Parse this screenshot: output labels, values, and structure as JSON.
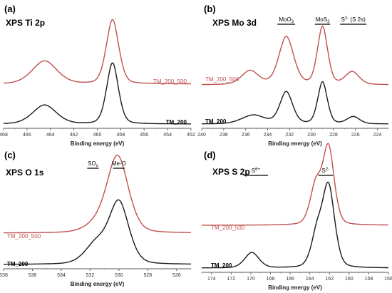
{
  "colors": {
    "black": "#1a1a1a",
    "red": "#c0504d"
  },
  "panels": [
    {
      "letter": "(a)",
      "name": "XPS Ti 2p",
      "xlabel": "Binding energy (eV)",
      "ticks": [
        "468",
        "466",
        "464",
        "462",
        "460",
        "458",
        "456",
        "454",
        "452"
      ],
      "peak_labels": [],
      "series_labels": [
        "TM_200_500",
        "TM_200"
      ]
    },
    {
      "letter": "(b)",
      "name": "XPS Mo 3d",
      "xlabel": "Binding energy (eV)",
      "ticks": [
        "240",
        "238",
        "236",
        "234",
        "232",
        "230",
        "228",
        "226",
        "224"
      ],
      "peak_labels": [
        {
          "main": "MoO",
          "sub": "3",
          "after": ""
        },
        {
          "main": "MoS",
          "sub": "2",
          "after": ""
        },
        {
          "main": "S",
          "sup": "2-",
          "after": " (S 2s)"
        }
      ],
      "series_labels": [
        "TM_200_500",
        "TM_200"
      ]
    },
    {
      "letter": "(c)",
      "name": "XPS O 1s",
      "xlabel": "Binding energy (eV)",
      "ticks": [
        "538",
        "536",
        "534",
        "532",
        "530",
        "528",
        "526"
      ],
      "peak_labels": [
        {
          "main": "SO",
          "sub": "x",
          "after": ""
        },
        {
          "main": "Me-O",
          "after": ""
        }
      ],
      "series_labels": [
        "TM_200_500",
        "TM_200"
      ]
    },
    {
      "letter": "(d)",
      "name": "XPS S 2p",
      "xlabel": "Binding energy (eV)",
      "ticks": [
        "174",
        "172",
        "170",
        "168",
        "166",
        "164",
        "162",
        "160",
        "158",
        "156"
      ],
      "peak_labels": [
        {
          "main": "S",
          "sup": "6+",
          "after": ""
        },
        {
          "main": "S",
          "sup": "2-",
          "after": ""
        }
      ],
      "series_labels": [
        "TM_200_500",
        "TM_200"
      ]
    }
  ],
  "chart_data": [
    {
      "type": "line",
      "title": "XPS Ti 2p",
      "xlabel": "Binding energy (eV)",
      "ylabel": "",
      "xlim": [
        468,
        452
      ],
      "x_reversed": true,
      "series": [
        {
          "name": "TM_200_500",
          "peaks": [
            {
              "center": 464.5,
              "height": 0.52,
              "width": 1.1
            },
            {
              "center": 458.7,
              "height": 1.45,
              "width": 0.55
            }
          ],
          "baseline": 0.02
        },
        {
          "name": "TM_200",
          "peaks": [
            {
              "center": 464.5,
              "height": 0.43,
              "width": 1.05
            },
            {
              "center": 458.7,
              "height": 1.38,
              "width": 0.52
            }
          ],
          "baseline": 0.0
        }
      ]
    },
    {
      "type": "line",
      "title": "XPS Mo 3d",
      "xlabel": "Binding energy (eV)",
      "ylabel": "",
      "xlim": [
        240,
        223
      ],
      "x_reversed": true,
      "series": [
        {
          "name": "TM_200_500",
          "peaks": [
            {
              "center": 235.6,
              "height": 0.35,
              "width": 0.8
            },
            {
              "center": 232.3,
              "height": 1.2,
              "width": 0.7
            },
            {
              "center": 229.0,
              "height": 1.45,
              "width": 0.48
            },
            {
              "center": 226.3,
              "height": 0.32,
              "width": 0.65
            }
          ],
          "baseline": 0.0
        },
        {
          "name": "TM_200",
          "peaks": [
            {
              "center": 235.3,
              "height": 0.22,
              "width": 1.1
            },
            {
              "center": 232.3,
              "height": 0.8,
              "width": 0.6
            },
            {
              "center": 229.0,
              "height": 1.05,
              "width": 0.45
            },
            {
              "center": 226.2,
              "height": 0.18,
              "width": 0.6
            }
          ],
          "baseline": 0.0
        }
      ]
    },
    {
      "type": "line",
      "title": "XPS O 1s",
      "xlabel": "Binding energy (eV)",
      "ylabel": "",
      "xlim": [
        538,
        525
      ],
      "x_reversed": true,
      "series": [
        {
          "name": "TM_200_500",
          "peaks": [
            {
              "center": 530.1,
              "height": 1.5,
              "width": 0.78
            },
            {
              "center": 531.7,
              "height": 0.12,
              "width": 0.8
            }
          ],
          "baseline": 0.0
        },
        {
          "name": "TM_200",
          "peaks": [
            {
              "center": 530.0,
              "height": 1.2,
              "width": 0.72
            },
            {
              "center": 531.6,
              "height": 0.38,
              "width": 0.8
            }
          ],
          "baseline": 0.0
        }
      ]
    },
    {
      "type": "line",
      "title": "XPS S 2p",
      "xlabel": "Binding energy (eV)",
      "ylabel": "",
      "xlim": [
        175,
        156
      ],
      "x_reversed": true,
      "series": [
        {
          "name": "TM_200_500",
          "peaks": [
            {
              "center": 162.1,
              "height": 1.0,
              "width": 0.6
            },
            {
              "center": 163.4,
              "height": 0.5,
              "width": 0.6
            }
          ],
          "baseline": 0.0
        },
        {
          "name": "TM_200",
          "peaks": [
            {
              "center": 162.1,
              "height": 1.05,
              "width": 0.65
            },
            {
              "center": 163.3,
              "height": 0.4,
              "width": 0.6
            },
            {
              "center": 169.9,
              "height": 0.2,
              "width": 0.75
            }
          ],
          "baseline": 0.0
        }
      ]
    }
  ]
}
